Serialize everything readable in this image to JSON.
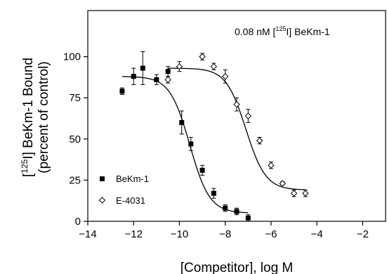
{
  "chart_data": {
    "type": "scatter",
    "annotation": {
      "prefix": "0.08 nM  [",
      "sup": "125",
      "suffix": "I] BeKm-1"
    },
    "xlabel": "[Competitor], log M",
    "ylabel": {
      "line1_prefix": "[",
      "line1_sup": "125",
      "line1_suffix": "I] BeKm-1 Bound",
      "line2": "(percent of control)"
    },
    "xlim": [
      -14,
      -1
    ],
    "ylim": [
      0,
      128
    ],
    "xticks": [
      -14,
      -12,
      -10,
      -8,
      -6,
      -4,
      -2
    ],
    "yticks": [
      0,
      25,
      50,
      75,
      100
    ],
    "legend_position": "bottom-left",
    "series": [
      {
        "name": "BeKm-1",
        "marker": "filled-square",
        "points": [
          {
            "x": -12.5,
            "y": 79,
            "err": 2
          },
          {
            "x": -12.0,
            "y": 88,
            "err": 5
          },
          {
            "x": -11.6,
            "y": 93,
            "err": 10
          },
          {
            "x": -11.0,
            "y": 86,
            "err": 3
          },
          {
            "x": -10.5,
            "y": 91,
            "err": 3
          },
          {
            "x": -9.9,
            "y": 60,
            "err": 7
          },
          {
            "x": -9.5,
            "y": 47,
            "err": 4
          },
          {
            "x": -9.0,
            "y": 31,
            "err": 3
          },
          {
            "x": -8.5,
            "y": 17,
            "err": 3
          },
          {
            "x": -8.0,
            "y": 8,
            "err": 2
          },
          {
            "x": -7.5,
            "y": 6,
            "err": 2
          },
          {
            "x": -7.0,
            "y": 2,
            "err": 2
          }
        ],
        "fit": {
          "top": 88,
          "bottom": 5,
          "log_ic50": -9.55,
          "hill": 1.0,
          "x_range": [
            -12.5,
            -7.0
          ]
        }
      },
      {
        "name": "E-4031",
        "marker": "open-diamond",
        "points": [
          {
            "x": -10.5,
            "y": 86,
            "err": 2
          },
          {
            "x": -10.0,
            "y": 94,
            "err": 3
          },
          {
            "x": -9.0,
            "y": 100,
            "err": 2
          },
          {
            "x": -8.5,
            "y": 94,
            "err": 2
          },
          {
            "x": -8.0,
            "y": 88,
            "err": 4
          },
          {
            "x": -7.5,
            "y": 71,
            "err": 4
          },
          {
            "x": -7.0,
            "y": 64,
            "err": 4
          },
          {
            "x": -6.5,
            "y": 49,
            "err": 2
          },
          {
            "x": -6.0,
            "y": 34,
            "err": 2
          },
          {
            "x": -5.5,
            "y": 23,
            "err": 1
          },
          {
            "x": -5.0,
            "y": 17,
            "err": 2
          },
          {
            "x": -4.5,
            "y": 17,
            "err": 2
          }
        ],
        "fit": {
          "top": 93,
          "bottom": 19,
          "log_ic50": -7.1,
          "hill": 1.0,
          "x_range": [
            -10.5,
            -4.5
          ]
        }
      }
    ]
  }
}
